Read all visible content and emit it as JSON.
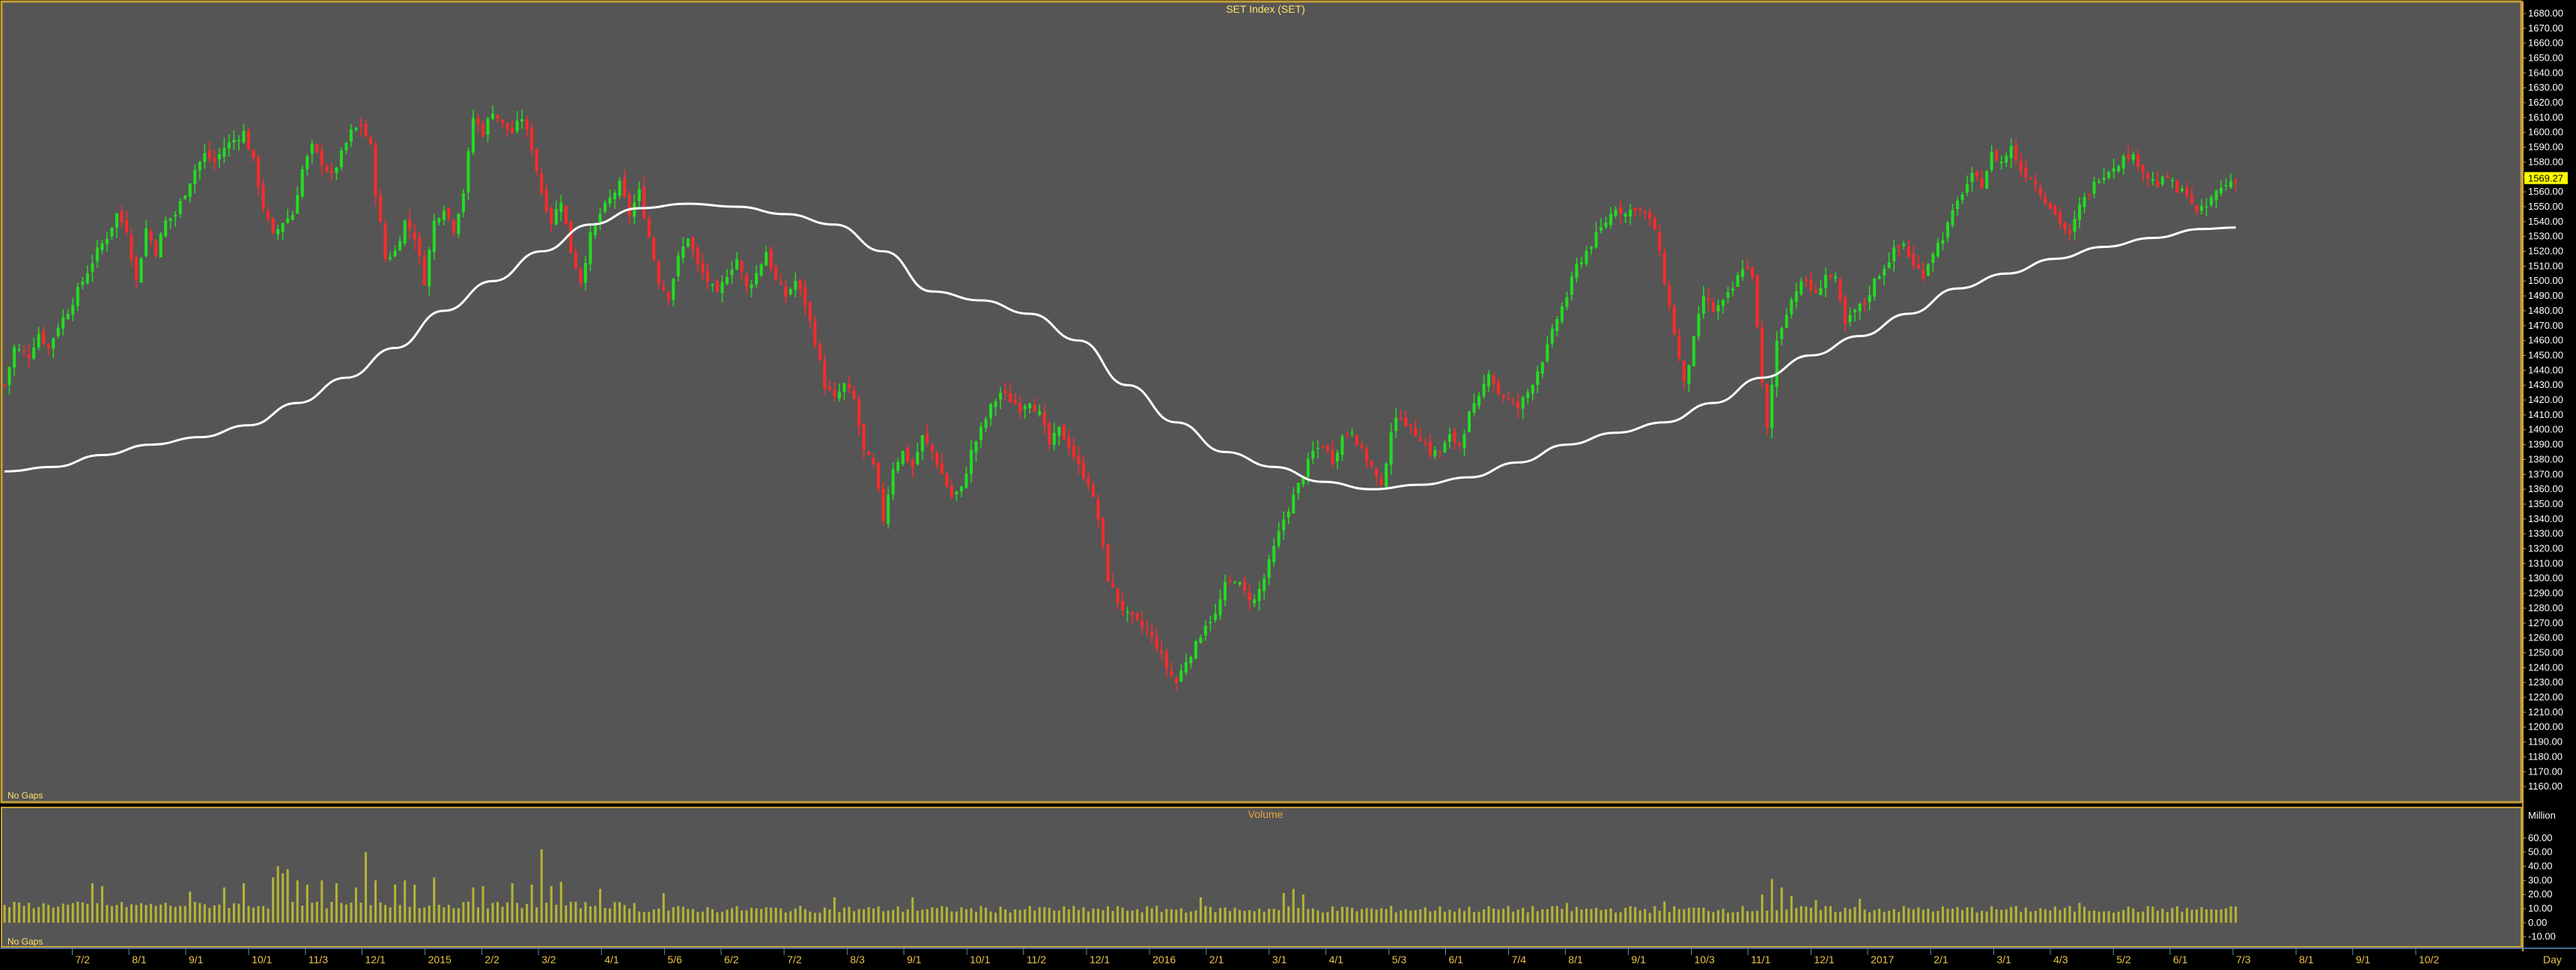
{
  "chart_data": {
    "type": "candlestick",
    "price_panel": {
      "title": "SET Index (SET)",
      "corner_note": "No Gaps",
      "y_range": [
        1150,
        1685
      ],
      "y_ticks": [
        "1680.00",
        "1670.00",
        "1660.00",
        "1650.00",
        "1640.00",
        "1630.00",
        "1620.00",
        "1610.00",
        "1600.00",
        "1590.00",
        "1580.00",
        "1570.00",
        "1560.00",
        "1550.00",
        "1540.00",
        "1530.00",
        "1520.00",
        "1510.00",
        "1500.00",
        "1490.00",
        "1480.00",
        "1470.00",
        "1460.00",
        "1450.00",
        "1440.00",
        "1430.00",
        "1420.00",
        "1410.00",
        "1400.00",
        "1390.00",
        "1380.00",
        "1370.00",
        "1360.00",
        "1350.00",
        "1340.00",
        "1330.00",
        "1320.00",
        "1310.00",
        "1300.00",
        "1290.00",
        "1280.00",
        "1270.00",
        "1260.00",
        "1250.00",
        "1240.00",
        "1230.00",
        "1220.00",
        "1210.00",
        "1200.00",
        "1190.00",
        "1180.00",
        "1170.00",
        "1160.00"
      ],
      "last_price_label": "1569.27",
      "up_color": "#22dd22",
      "down_color": "#ff2a2a",
      "ma_color": "#ffffff",
      "price_path": [
        [
          0,
          1430
        ],
        [
          2,
          1455
        ],
        [
          5,
          1450
        ],
        [
          7,
          1465
        ],
        [
          9,
          1455
        ],
        [
          11,
          1470
        ],
        [
          13,
          1480
        ],
        [
          16,
          1500
        ],
        [
          19,
          1520
        ],
        [
          21,
          1530
        ],
        [
          23,
          1545
        ],
        [
          25,
          1535
        ],
        [
          27,
          1500
        ],
        [
          29,
          1535
        ],
        [
          31,
          1520
        ],
        [
          33,
          1540
        ],
        [
          35,
          1545
        ],
        [
          37,
          1560
        ],
        [
          39,
          1575
        ],
        [
          41,
          1585
        ],
        [
          43,
          1580
        ],
        [
          45,
          1590
        ],
        [
          47,
          1595
        ],
        [
          49,
          1600
        ],
        [
          51,
          1580
        ],
        [
          53,
          1550
        ],
        [
          55,
          1530
        ],
        [
          57,
          1540
        ],
        [
          59,
          1545
        ],
        [
          61,
          1575
        ],
        [
          63,
          1590
        ],
        [
          65,
          1580
        ],
        [
          67,
          1570
        ],
        [
          69,
          1585
        ],
        [
          71,
          1600
        ],
        [
          73,
          1605
        ],
        [
          75,
          1590
        ],
        [
          76,
          1560
        ],
        [
          78,
          1515
        ],
        [
          80,
          1520
        ],
        [
          82,
          1540
        ],
        [
          84,
          1530
        ],
        [
          86,
          1500
        ],
        [
          88,
          1540
        ],
        [
          90,
          1550
        ],
        [
          92,
          1535
        ],
        [
          94,
          1560
        ],
        [
          96,
          1610
        ],
        [
          98,
          1600
        ],
        [
          100,
          1615
        ],
        [
          102,
          1605
        ],
        [
          104,
          1600
        ],
        [
          106,
          1610
        ],
        [
          108,
          1590
        ],
        [
          110,
          1560
        ],
        [
          112,
          1540
        ],
        [
          114,
          1555
        ],
        [
          116,
          1520
        ],
        [
          118,
          1500
        ],
        [
          120,
          1530
        ],
        [
          122,
          1545
        ],
        [
          124,
          1555
        ],
        [
          126,
          1565
        ],
        [
          128,
          1545
        ],
        [
          130,
          1560
        ],
        [
          132,
          1530
        ],
        [
          134,
          1500
        ],
        [
          136,
          1490
        ],
        [
          138,
          1515
        ],
        [
          140,
          1530
        ],
        [
          142,
          1510
        ],
        [
          144,
          1500
        ],
        [
          146,
          1490
        ],
        [
          148,
          1505
        ],
        [
          150,
          1515
        ],
        [
          152,
          1495
        ],
        [
          154,
          1505
        ],
        [
          156,
          1520
        ],
        [
          158,
          1500
        ],
        [
          160,
          1490
        ],
        [
          162,
          1500
        ],
        [
          164,
          1485
        ],
        [
          166,
          1460
        ],
        [
          168,
          1430
        ],
        [
          170,
          1420
        ],
        [
          172,
          1430
        ],
        [
          174,
          1420
        ],
        [
          176,
          1385
        ],
        [
          178,
          1375
        ],
        [
          180,
          1340
        ],
        [
          182,
          1375
        ],
        [
          184,
          1385
        ],
        [
          186,
          1375
        ],
        [
          188,
          1395
        ],
        [
          190,
          1385
        ],
        [
          192,
          1370
        ],
        [
          194,
          1355
        ],
        [
          196,
          1360
        ],
        [
          198,
          1385
        ],
        [
          200,
          1400
        ],
        [
          202,
          1415
        ],
        [
          204,
          1425
        ],
        [
          206,
          1420
        ],
        [
          208,
          1415
        ],
        [
          210,
          1420
        ],
        [
          212,
          1410
        ],
        [
          214,
          1390
        ],
        [
          216,
          1400
        ],
        [
          218,
          1390
        ],
        [
          220,
          1375
        ],
        [
          222,
          1365
        ],
        [
          224,
          1340
        ],
        [
          226,
          1300
        ],
        [
          228,
          1285
        ],
        [
          230,
          1275
        ],
        [
          232,
          1270
        ],
        [
          234,
          1265
        ],
        [
          236,
          1255
        ],
        [
          238,
          1240
        ],
        [
          240,
          1230
        ],
        [
          242,
          1245
        ],
        [
          244,
          1255
        ],
        [
          246,
          1270
        ],
        [
          248,
          1275
        ],
        [
          250,
          1295
        ],
        [
          252,
          1300
        ],
        [
          254,
          1290
        ],
        [
          256,
          1285
        ],
        [
          258,
          1300
        ],
        [
          260,
          1320
        ],
        [
          262,
          1340
        ],
        [
          264,
          1355
        ],
        [
          266,
          1370
        ],
        [
          268,
          1385
        ],
        [
          270,
          1390
        ],
        [
          272,
          1380
        ],
        [
          274,
          1395
        ],
        [
          276,
          1400
        ],
        [
          278,
          1385
        ],
        [
          280,
          1375
        ],
        [
          282,
          1360
        ],
        [
          284,
          1400
        ],
        [
          286,
          1410
        ],
        [
          288,
          1400
        ],
        [
          290,
          1395
        ],
        [
          292,
          1385
        ],
        [
          294,
          1385
        ],
        [
          296,
          1395
        ],
        [
          298,
          1390
        ],
        [
          300,
          1410
        ],
        [
          302,
          1420
        ],
        [
          304,
          1440
        ],
        [
          306,
          1425
        ],
        [
          308,
          1420
        ],
        [
          310,
          1415
        ],
        [
          312,
          1425
        ],
        [
          314,
          1440
        ],
        [
          316,
          1455
        ],
        [
          318,
          1475
        ],
        [
          320,
          1490
        ],
        [
          322,
          1510
        ],
        [
          324,
          1520
        ],
        [
          326,
          1530
        ],
        [
          328,
          1540
        ],
        [
          330,
          1550
        ],
        [
          332,
          1545
        ],
        [
          334,
          1550
        ],
        [
          336,
          1545
        ],
        [
          338,
          1535
        ],
        [
          340,
          1500
        ],
        [
          342,
          1465
        ],
        [
          344,
          1430
        ],
        [
          346,
          1460
        ],
        [
          348,
          1490
        ],
        [
          350,
          1480
        ],
        [
          352,
          1485
        ],
        [
          354,
          1495
        ],
        [
          356,
          1510
        ],
        [
          358,
          1505
        ],
        [
          360,
          1430
        ],
        [
          361,
          1400
        ],
        [
          363,
          1460
        ],
        [
          365,
          1480
        ],
        [
          367,
          1495
        ],
        [
          369,
          1500
        ],
        [
          371,
          1490
        ],
        [
          373,
          1505
        ],
        [
          375,
          1500
        ],
        [
          377,
          1470
        ],
        [
          379,
          1480
        ],
        [
          381,
          1485
        ],
        [
          383,
          1500
        ],
        [
          385,
          1510
        ],
        [
          387,
          1520
        ],
        [
          389,
          1525
        ],
        [
          391,
          1510
        ],
        [
          393,
          1505
        ],
        [
          395,
          1520
        ],
        [
          397,
          1530
        ],
        [
          399,
          1545
        ],
        [
          401,
          1560
        ],
        [
          403,
          1570
        ],
        [
          405,
          1565
        ],
        [
          407,
          1585
        ],
        [
          409,
          1580
        ],
        [
          411,
          1590
        ],
        [
          413,
          1575
        ],
        [
          415,
          1570
        ],
        [
          417,
          1560
        ],
        [
          419,
          1550
        ],
        [
          421,
          1540
        ],
        [
          423,
          1530
        ],
        [
          425,
          1550
        ],
        [
          427,
          1560
        ],
        [
          429,
          1570
        ],
        [
          431,
          1575
        ],
        [
          433,
          1580
        ],
        [
          435,
          1585
        ],
        [
          437,
          1580
        ],
        [
          439,
          1570
        ],
        [
          441,
          1565
        ],
        [
          443,
          1570
        ],
        [
          445,
          1560
        ],
        [
          447,
          1560
        ],
        [
          449,
          1545
        ],
        [
          451,
          1550
        ],
        [
          453,
          1560
        ],
        [
          455,
          1565
        ],
        [
          457,
          1569
        ]
      ],
      "ma_path": [
        [
          0,
          1372
        ],
        [
          10,
          1375
        ],
        [
          20,
          1383
        ],
        [
          30,
          1390
        ],
        [
          40,
          1395
        ],
        [
          50,
          1403
        ],
        [
          60,
          1418
        ],
        [
          70,
          1435
        ],
        [
          80,
          1455
        ],
        [
          90,
          1480
        ],
        [
          100,
          1500
        ],
        [
          110,
          1520
        ],
        [
          120,
          1538
        ],
        [
          130,
          1549
        ],
        [
          140,
          1552
        ],
        [
          150,
          1550
        ],
        [
          160,
          1545
        ],
        [
          170,
          1538
        ],
        [
          180,
          1520
        ],
        [
          190,
          1493
        ],
        [
          200,
          1487
        ],
        [
          210,
          1478
        ],
        [
          220,
          1460
        ],
        [
          230,
          1430
        ],
        [
          240,
          1405
        ],
        [
          250,
          1385
        ],
        [
          260,
          1375
        ],
        [
          270,
          1365
        ],
        [
          280,
          1360
        ],
        [
          290,
          1363
        ],
        [
          300,
          1368
        ],
        [
          310,
          1378
        ],
        [
          320,
          1390
        ],
        [
          330,
          1398
        ],
        [
          340,
          1405
        ],
        [
          350,
          1418
        ],
        [
          360,
          1435
        ],
        [
          370,
          1450
        ],
        [
          380,
          1463
        ],
        [
          390,
          1478
        ],
        [
          400,
          1495
        ],
        [
          410,
          1505
        ],
        [
          420,
          1515
        ],
        [
          430,
          1523
        ],
        [
          440,
          1529
        ],
        [
          450,
          1535
        ],
        [
          457,
          1536
        ]
      ]
    },
    "volume_panel": {
      "title": "Volume",
      "corner_note": "No Gaps",
      "unit": "Million",
      "y_range": [
        -16,
        70
      ],
      "y_ticks": [
        "60.00",
        "50.00",
        "40.00",
        "30.00",
        "20.00",
        "10.00",
        "0.00",
        "-10.00"
      ],
      "color": "#b5b535",
      "spikes": [
        [
          18,
          28
        ],
        [
          20,
          26
        ],
        [
          38,
          22
        ],
        [
          45,
          25
        ],
        [
          49,
          28
        ],
        [
          55,
          32
        ],
        [
          56,
          40
        ],
        [
          57,
          35
        ],
        [
          58,
          38
        ],
        [
          60,
          30
        ],
        [
          62,
          27
        ],
        [
          65,
          30
        ],
        [
          68,
          28
        ],
        [
          72,
          25
        ],
        [
          74,
          50
        ],
        [
          76,
          30
        ],
        [
          80,
          27
        ],
        [
          82,
          30
        ],
        [
          84,
          27
        ],
        [
          88,
          32
        ],
        [
          96,
          25
        ],
        [
          98,
          26
        ],
        [
          104,
          28
        ],
        [
          108,
          27
        ],
        [
          110,
          52
        ],
        [
          112,
          26
        ],
        [
          114,
          29
        ],
        [
          122,
          24
        ],
        [
          135,
          21
        ],
        [
          170,
          18
        ],
        [
          186,
          18
        ],
        [
          245,
          18
        ],
        [
          262,
          21
        ],
        [
          264,
          24
        ],
        [
          266,
          20
        ],
        [
          320,
          14
        ],
        [
          340,
          15
        ],
        [
          360,
          20
        ],
        [
          362,
          31
        ],
        [
          364,
          25
        ],
        [
          366,
          19
        ],
        [
          371,
          16
        ],
        [
          380,
          17
        ],
        [
          425,
          14
        ]
      ]
    },
    "x_axis": {
      "labels": [
        "7/2",
        "8/1",
        "9/1",
        "10/1",
        "11/3",
        "12/1",
        "2015",
        "2/2",
        "3/2",
        "4/1",
        "5/6",
        "6/2",
        "7/2",
        "8/3",
        "9/1",
        "10/1",
        "11/2",
        "12/1",
        "2016",
        "2/1",
        "3/1",
        "4/1",
        "5/3",
        "6/1",
        "7/4",
        "8/1",
        "9/1",
        "10/3",
        "11/1",
        "12/1",
        "2017",
        "2/1",
        "3/1",
        "4/3",
        "5/2",
        "6/1",
        "7/3",
        "8/1",
        "9/1",
        "10/2"
      ],
      "positions": [
        11,
        20,
        29,
        39,
        48,
        57,
        67,
        76,
        85,
        95,
        105,
        114,
        124,
        134,
        143,
        153,
        162,
        172,
        182,
        191,
        201,
        210,
        220,
        229,
        239,
        248,
        258,
        268,
        277,
        287,
        296,
        306,
        316,
        325,
        335,
        344,
        354,
        364,
        373,
        383
      ],
      "axis_range": [
        0,
        400
      ],
      "right_label": "Day"
    }
  }
}
